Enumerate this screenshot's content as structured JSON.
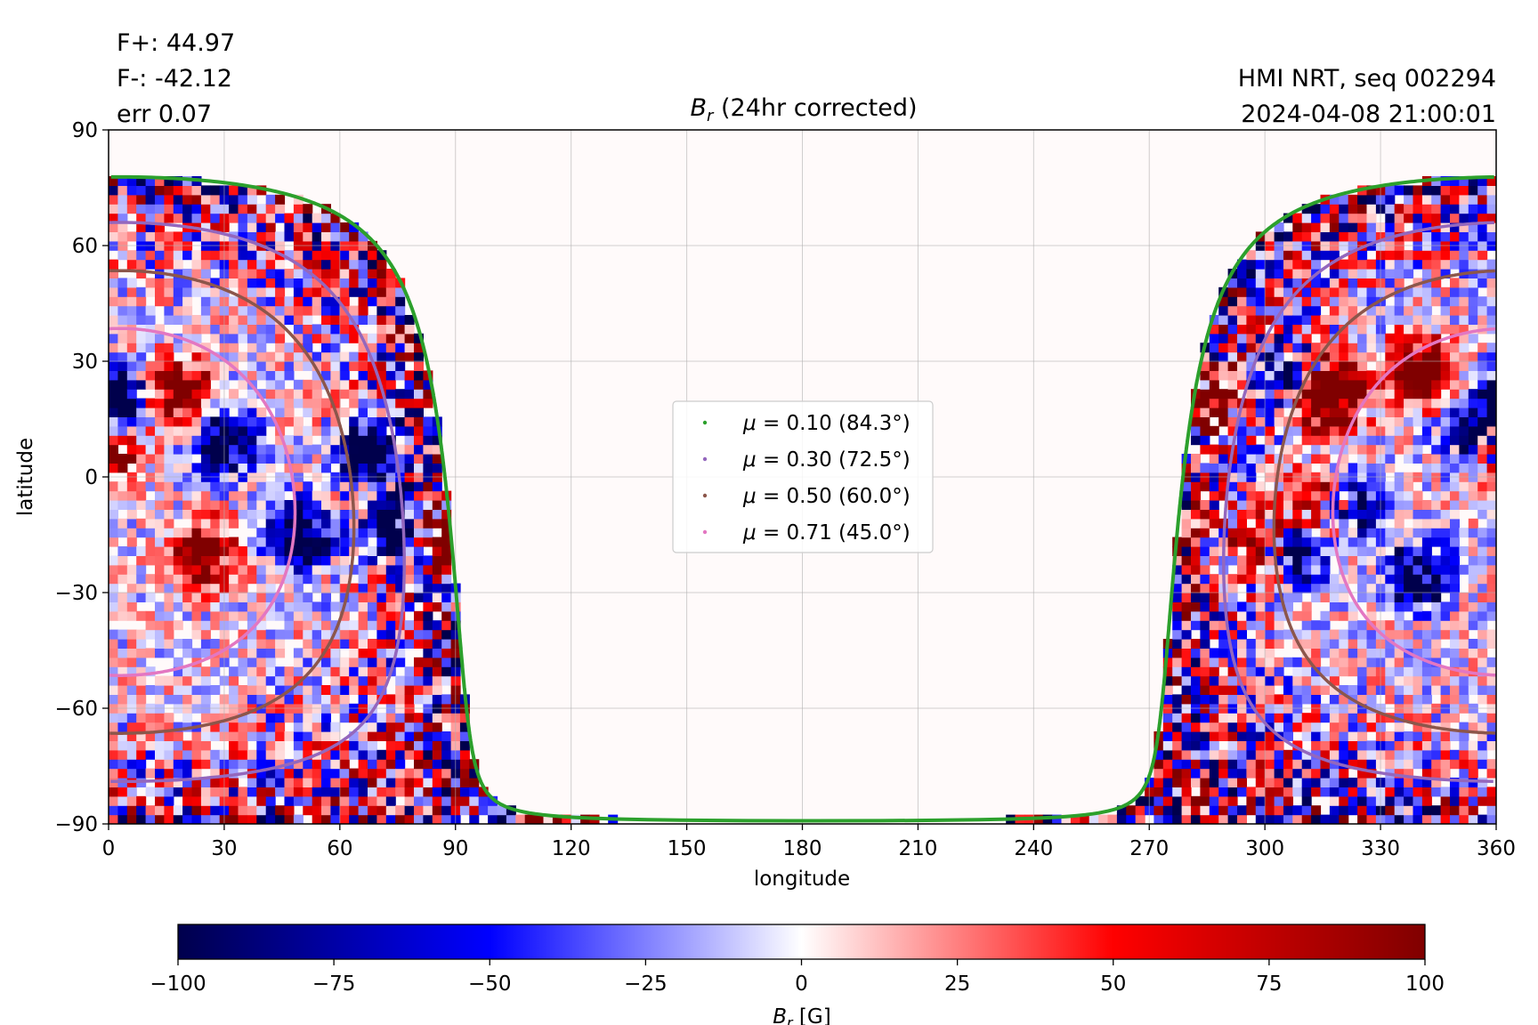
{
  "header": {
    "flux_pos": "F+: 44.97",
    "flux_neg": "F-: -42.12",
    "err": "err 0.07",
    "source": "HMI NRT, seq 002294",
    "timestamp": "2024-04-08 21:00:01"
  },
  "chart_data": {
    "type": "heatmap",
    "title_symbol": "B",
    "title_sub": "r",
    "title_rest": " (24hr corrected)",
    "xlabel": "longitude",
    "ylabel": "latitude",
    "xlim": [
      0,
      360
    ],
    "ylim": [
      -90,
      90
    ],
    "xticks": [
      0,
      30,
      60,
      90,
      120,
      150,
      180,
      210,
      240,
      270,
      300,
      330,
      360
    ],
    "yticks": [
      -90,
      -60,
      -30,
      0,
      30,
      60,
      90
    ],
    "xtick_labels": [
      "0",
      "30",
      "60",
      "90",
      "120",
      "150",
      "180",
      "210",
      "240",
      "270",
      "300",
      "330",
      "360"
    ],
    "ytick_labels": [
      "−90",
      "−60",
      "−30",
      "0",
      "30",
      "60",
      "90"
    ],
    "grid": true,
    "legend_position": "center",
    "disk_center": {
      "lon": 3,
      "lat": -6.5
    },
    "regions": [
      {
        "lon": 18,
        "lat": 22,
        "polarity": "positive"
      },
      {
        "lon": 3,
        "lat": 20,
        "polarity": "negative"
      },
      {
        "lon": 0,
        "lat": 8,
        "polarity": "positive"
      },
      {
        "lon": 30,
        "lat": 9,
        "polarity": "negative"
      },
      {
        "lon": 25,
        "lat": -20,
        "polarity": "positive"
      },
      {
        "lon": 68,
        "lat": 7,
        "polarity": "negative"
      },
      {
        "lon": 50,
        "lat": -15,
        "polarity": "negative"
      },
      {
        "lon": 75,
        "lat": -13,
        "polarity": "negative"
      },
      {
        "lon": 87,
        "lat": -13,
        "polarity": "positive"
      },
      {
        "lon": 285,
        "lat": 20,
        "polarity": "positive"
      },
      {
        "lon": 308,
        "lat": 26,
        "polarity": "negative"
      },
      {
        "lon": 313,
        "lat": 25,
        "polarity": "positive"
      },
      {
        "lon": 318,
        "lat": 20,
        "polarity": "positive"
      },
      {
        "lon": 315,
        "lat": -7,
        "polarity": "positive"
      },
      {
        "lon": 322,
        "lat": -7,
        "polarity": "negative"
      },
      {
        "lon": 300,
        "lat": -18,
        "polarity": "positive"
      },
      {
        "lon": 307,
        "lat": -20,
        "polarity": "negative"
      },
      {
        "lon": 340,
        "lat": -25,
        "polarity": "negative"
      },
      {
        "lon": 355,
        "lat": 10,
        "polarity": "negative"
      },
      {
        "lon": 340,
        "lat": 28,
        "polarity": "positive"
      }
    ],
    "series": [
      {
        "name": "μ = 0.10 (84.3°)",
        "mu_label": "0.10",
        "angle_label": "(84.3°)",
        "angle_deg": 84.3,
        "color": "#2ca02c"
      },
      {
        "name": "μ = 0.30 (72.5°)",
        "mu_label": "0.30",
        "angle_label": "(72.5°)",
        "angle_deg": 72.5,
        "color": "#9467bd"
      },
      {
        "name": "μ = 0.50 (60.0°)",
        "mu_label": "0.50",
        "angle_label": "(60.0°)",
        "angle_deg": 60.0,
        "color": "#8c564b"
      },
      {
        "name": "μ = 0.71 (45.0°)",
        "mu_label": "0.71",
        "angle_label": "(45.0°)",
        "angle_deg": 45.0,
        "color": "#e377c2"
      }
    ],
    "colorbar": {
      "min": -100,
      "max": 100,
      "ticks": [
        -100,
        -75,
        -50,
        -25,
        0,
        25,
        50,
        75,
        100
      ],
      "tick_labels": [
        "−100",
        "−75",
        "−50",
        "−25",
        "0",
        "25",
        "50",
        "75",
        "100"
      ],
      "label_symbol": "B",
      "label_sub": "r",
      "label_unit": " [G]",
      "colormap": "seismic",
      "colors": [
        "#00004c",
        "#0000ff",
        "#ffffff",
        "#ff0000",
        "#800000"
      ]
    },
    "background_color": "#fffafa"
  }
}
